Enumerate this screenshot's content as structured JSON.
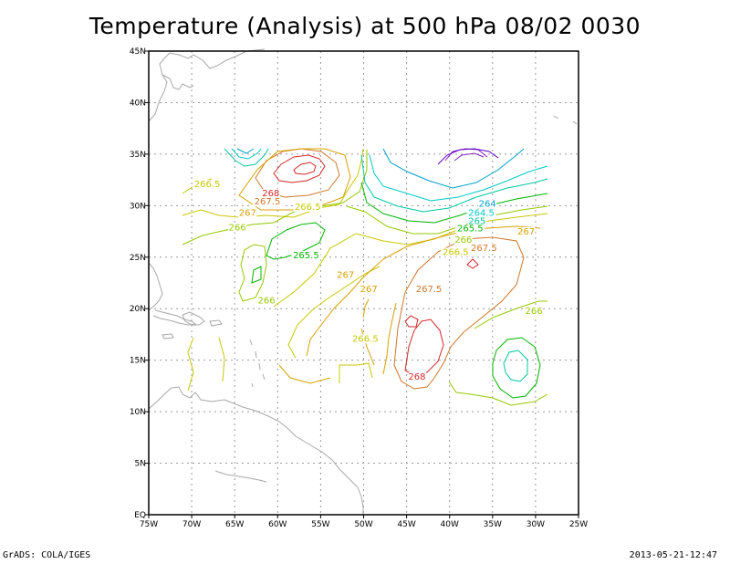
{
  "title": "Temperature (Analysis) at 500 hPa 08/02 0030",
  "footer": {
    "left": "GrADS: COLA/IGES",
    "right": "2013-05-21-12:47"
  },
  "axes": {
    "lon_labels": [
      "75W",
      "70W",
      "65W",
      "60W",
      "55W",
      "50W",
      "45W",
      "40W",
      "35W",
      "30W",
      "25W"
    ],
    "lat_labels": [
      "EQ",
      "5N",
      "10N",
      "15N",
      "20N",
      "25N",
      "30N",
      "35N",
      "40N",
      "45N"
    ]
  },
  "contour_labels": [
    {
      "text": "266.5",
      "color": "#c8c800",
      "lon": -68.2,
      "lat": 31.8
    },
    {
      "text": "268",
      "color": "#d02828",
      "lon": -60.8,
      "lat": 30.9
    },
    {
      "text": "267.5",
      "color": "#d07828",
      "lon": -61.2,
      "lat": 30.1
    },
    {
      "text": "266.5",
      "color": "#c8c800",
      "lon": -56.5,
      "lat": 29.6
    },
    {
      "text": "267",
      "color": "#d8a000",
      "lon": -63.5,
      "lat": 29.0
    },
    {
      "text": "266",
      "color": "#96c800",
      "lon": -64.7,
      "lat": 27.6
    },
    {
      "text": "265.5",
      "color": "#00b400",
      "lon": -56.7,
      "lat": 24.9
    },
    {
      "text": "264",
      "color": "#00a0c8",
      "lon": -35.6,
      "lat": 29.9
    },
    {
      "text": "264.5",
      "color": "#00c8c8",
      "lon": -36.3,
      "lat": 29.0
    },
    {
      "text": "265",
      "color": "#00c8a0",
      "lon": -36.8,
      "lat": 28.2
    },
    {
      "text": "265.5",
      "color": "#00b400",
      "lon": -37.6,
      "lat": 27.5
    },
    {
      "text": "266",
      "color": "#96c800",
      "lon": -38.4,
      "lat": 26.4
    },
    {
      "text": "266.5",
      "color": "#c8c800",
      "lon": -39.3,
      "lat": 25.2
    },
    {
      "text": "267",
      "color": "#d8a000",
      "lon": -31.1,
      "lat": 27.2
    },
    {
      "text": "267.5",
      "color": "#d07828",
      "lon": -36.0,
      "lat": 25.6
    },
    {
      "text": "267",
      "color": "#d8a000",
      "lon": -52.1,
      "lat": 23.0
    },
    {
      "text": "267",
      "color": "#d8a000",
      "lon": -49.4,
      "lat": 21.6
    },
    {
      "text": "267.5",
      "color": "#d07828",
      "lon": -42.4,
      "lat": 21.6
    },
    {
      "text": "266",
      "color": "#96c800",
      "lon": -61.3,
      "lat": 20.5
    },
    {
      "text": "266",
      "color": "#96c800",
      "lon": -30.2,
      "lat": 19.5
    },
    {
      "text": "266.5",
      "color": "#c8c800",
      "lon": -49.8,
      "lat": 16.8
    },
    {
      "text": "268",
      "color": "#d02828",
      "lon": -43.8,
      "lat": 13.1
    }
  ]
}
